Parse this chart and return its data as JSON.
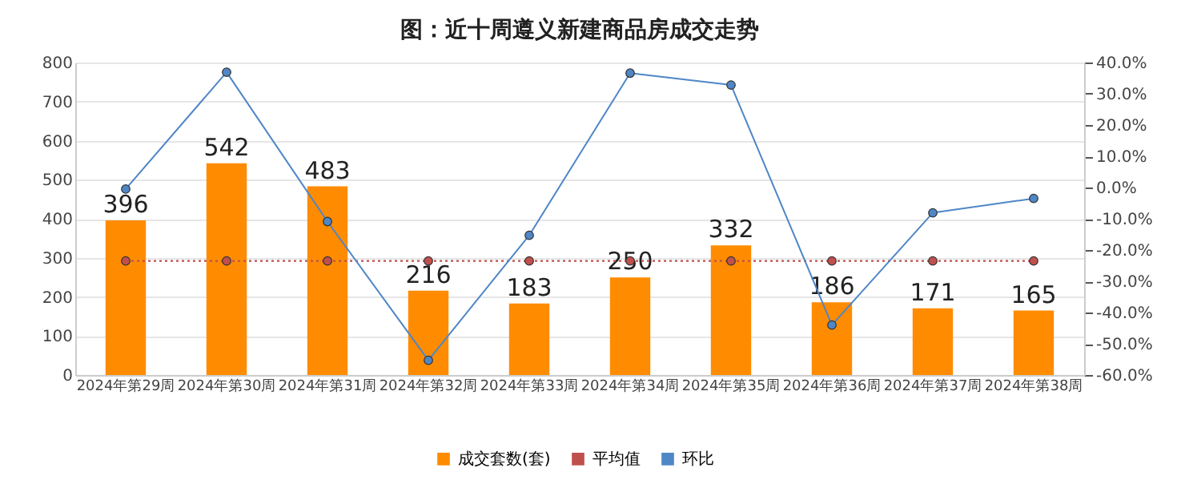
{
  "chart_data": {
    "type": "bar",
    "title": "图：近十周遵义新建商品房成交走势",
    "categories": [
      "2024年第29周",
      "2024年第30周",
      "2024年第31周",
      "2024年第32周",
      "2024年第33周",
      "2024年第34周",
      "2024年第35周",
      "2024年第36周",
      "2024年第37周",
      "2024年第38周"
    ],
    "series": [
      {
        "name": "成交套数(套)",
        "color": "#ff8c00",
        "values": [
          396,
          542,
          483,
          216,
          183,
          250,
          332,
          186,
          171,
          165
        ],
        "value_labels": [
          "396",
          "542",
          "483",
          "216",
          "183",
          "250",
          "332",
          "186",
          "171",
          "165"
        ]
      },
      {
        "name": "平均值",
        "type": "line",
        "color": "#c0504d",
        "line_style": "dotted",
        "marker": "circle",
        "values": [
          292,
          292,
          292,
          292,
          292,
          292,
          292,
          292,
          292,
          292
        ]
      },
      {
        "name": "环比",
        "type": "line",
        "axis": "y2",
        "color": "#4f86c6",
        "line_style": "solid",
        "marker": "circle",
        "values": [
          -0.5,
          36.9,
          -10.9,
          -55.3,
          -15.3,
          36.6,
          32.8,
          -44.0,
          -8.1,
          -3.5
        ]
      }
    ],
    "ylim": [
      0,
      800
    ],
    "yticks": [
      0,
      100,
      200,
      300,
      400,
      500,
      600,
      700,
      800
    ],
    "y2lim": [
      -60,
      40
    ],
    "y2ticks": [
      {
        "value": 40,
        "label": "40.0%"
      },
      {
        "value": 30,
        "label": "30.0%"
      },
      {
        "value": 20,
        "label": "20.0%"
      },
      {
        "value": 10,
        "label": "10.0%"
      },
      {
        "value": 0,
        "label": "0.0%"
      },
      {
        "value": -10,
        "label": "-10.0%"
      },
      {
        "value": -20,
        "label": "-20.0%"
      },
      {
        "value": -30,
        "label": "-30.0%"
      },
      {
        "value": -40,
        "label": "-40.0%"
      },
      {
        "value": -50,
        "label": "-50.0%"
      },
      {
        "value": -60,
        "label": "-60.0%"
      }
    ],
    "grid": "y",
    "legend": "bottom"
  }
}
